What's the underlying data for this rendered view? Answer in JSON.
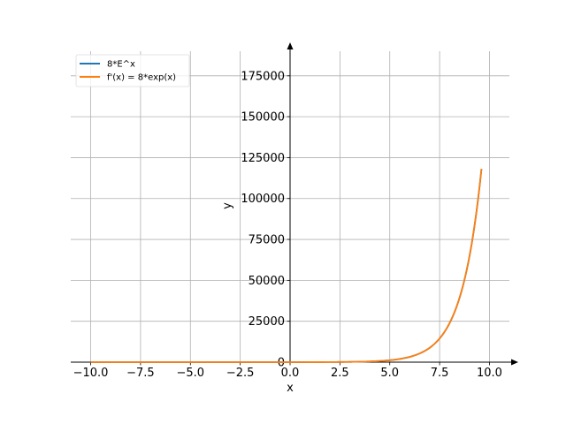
{
  "chart_data": {
    "type": "line",
    "title": "",
    "xlabel": "x",
    "ylabel": "y",
    "xlim": [
      -11.0,
      11.0
    ],
    "ylim": [
      0,
      190000
    ],
    "x_ticks": [
      -10.0,
      -7.5,
      -5.0,
      -2.5,
      0.0,
      2.5,
      5.0,
      7.5,
      10.0
    ],
    "x_tick_labels": [
      "−10.0",
      "−7.5",
      "−5.0",
      "−2.5",
      "0.0",
      "2.5",
      "5.0",
      "7.5",
      "10.0"
    ],
    "y_ticks": [
      0,
      25000,
      50000,
      75000,
      100000,
      125000,
      150000,
      175000
    ],
    "y_tick_labels": [
      "0",
      "25000",
      "50000",
      "75000",
      "100000",
      "125000",
      "150000",
      "175000"
    ],
    "grid": true,
    "legend_position": "top-left",
    "x_range": [
      -10,
      9.6
    ],
    "series": [
      {
        "name": "8*E^x",
        "color": "#1f77b4",
        "formula": "8*exp(x)"
      },
      {
        "name": "f'(x) = 8*exp(x)",
        "color": "#ff7f0e",
        "formula": "8*exp(x)"
      }
    ]
  }
}
